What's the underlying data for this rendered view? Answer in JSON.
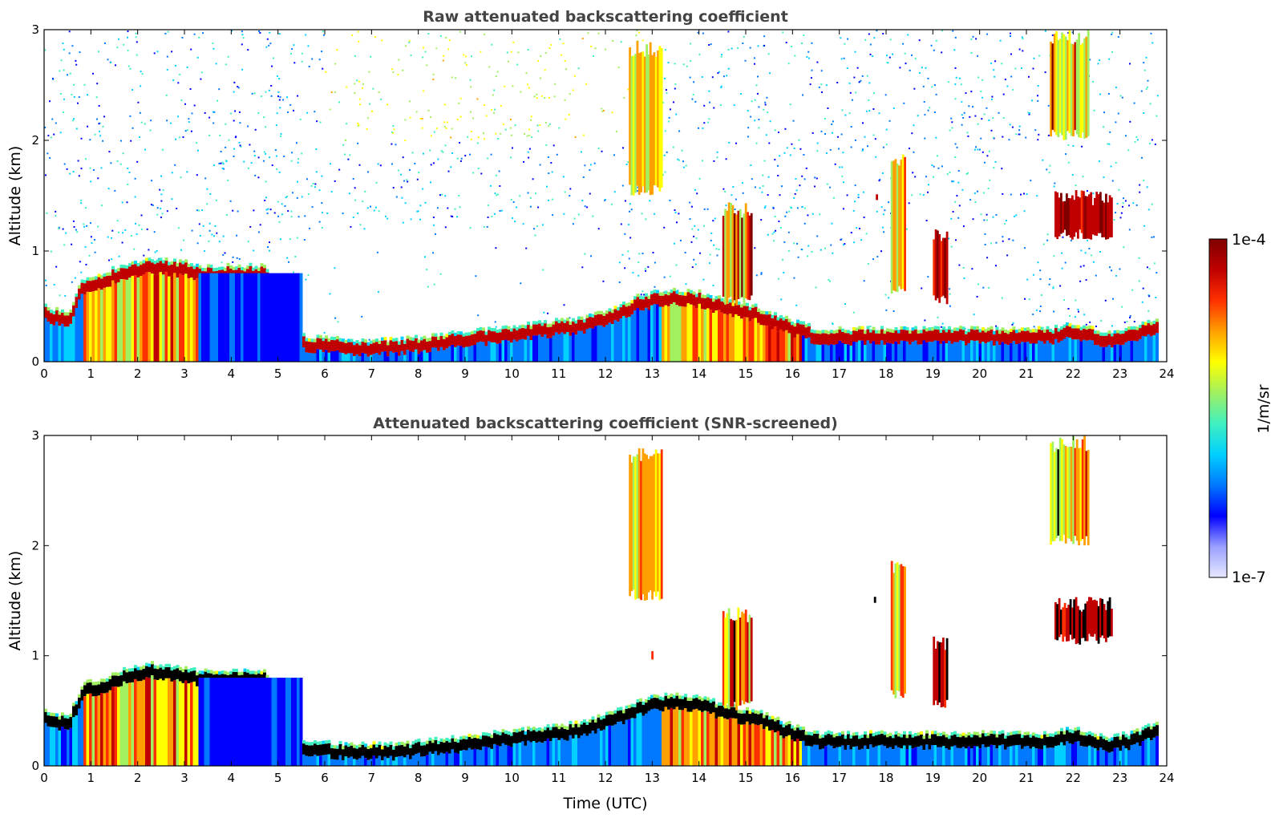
{
  "chart_data": [
    {
      "type": "heatmap",
      "title": "Raw attenuated backscattering coefficient",
      "xlabel": "",
      "ylabel": "Altitude (km)",
      "xlim": [
        0,
        24
      ],
      "ylim": [
        0,
        3
      ],
      "xticks": [
        "0",
        "1",
        "2",
        "3",
        "4",
        "5",
        "6",
        "7",
        "8",
        "9",
        "10",
        "11",
        "12",
        "13",
        "14",
        "15",
        "16",
        "17",
        "18",
        "19",
        "20",
        "21",
        "22",
        "23",
        "24"
      ],
      "yticks": [
        "0",
        "1",
        "2",
        "3"
      ],
      "screened": false,
      "boundary_layer_top_km": {
        "time_utc": [
          0,
          0.5,
          0.8,
          1.2,
          1.8,
          2.3,
          3.0,
          3.3,
          4.7,
          5.4,
          5.6,
          6.5,
          7.5,
          8.5,
          9.5,
          10.5,
          11.5,
          12.2,
          12.7,
          13.3,
          14.0,
          14.6,
          15.2,
          15.8,
          16.5,
          17.5,
          18.5,
          19.2,
          19.8,
          20.5,
          21.5,
          22.0,
          22.7,
          23.2,
          23.8
        ],
        "altitude_km": [
          0.45,
          0.4,
          0.7,
          0.75,
          0.85,
          0.88,
          0.85,
          0.82,
          0.82,
          0.2,
          0.18,
          0.15,
          0.15,
          0.2,
          0.25,
          0.3,
          0.35,
          0.45,
          0.55,
          0.6,
          0.58,
          0.5,
          0.45,
          0.35,
          0.25,
          0.25,
          0.25,
          0.25,
          0.25,
          0.25,
          0.25,
          0.3,
          0.22,
          0.25,
          0.35
        ]
      },
      "cloud_features": [
        {
          "time_start": 12.5,
          "time_end": 13.2,
          "alt_low_km": 1.5,
          "alt_high_km": 2.9
        },
        {
          "time_start": 12.9,
          "time_end": 13.0,
          "alt_low_km": 0.95,
          "alt_high_km": 1.05
        },
        {
          "time_start": 14.5,
          "time_end": 15.1,
          "alt_low_km": 0.5,
          "alt_high_km": 1.45
        },
        {
          "time_start": 17.7,
          "time_end": 17.8,
          "alt_low_km": 1.45,
          "alt_high_km": 1.55
        },
        {
          "time_start": 18.1,
          "time_end": 18.4,
          "alt_low_km": 0.6,
          "alt_high_km": 1.9
        },
        {
          "time_start": 19.0,
          "time_end": 19.3,
          "alt_low_km": 0.5,
          "alt_high_km": 1.2
        },
        {
          "time_start": 21.6,
          "time_end": 22.8,
          "alt_low_km": 1.1,
          "alt_high_km": 1.55
        },
        {
          "time_start": 21.5,
          "time_end": 22.3,
          "alt_low_km": 2.0,
          "alt_high_km": 3.0
        }
      ]
    },
    {
      "type": "heatmap",
      "title": "Attenuated backscattering coefficient (SNR-screened)",
      "xlabel": "Time (UTC)",
      "ylabel": "Altitude (km)",
      "xlim": [
        0,
        24
      ],
      "ylim": [
        0,
        3
      ],
      "xticks": [
        "0",
        "1",
        "2",
        "3",
        "4",
        "5",
        "6",
        "7",
        "8",
        "9",
        "10",
        "11",
        "12",
        "13",
        "14",
        "15",
        "16",
        "17",
        "18",
        "19",
        "20",
        "21",
        "22",
        "23",
        "24"
      ],
      "yticks": [
        "0",
        "1",
        "2",
        "3"
      ],
      "screened": true
    }
  ],
  "colorbar": {
    "label": "1/m/sr",
    "max_label": "1e-4",
    "min_label": "1e-7",
    "range": [
      1e-07,
      0.0001
    ],
    "scale": "log",
    "colors": [
      "#e8e8ff",
      "#9aa0ff",
      "#0000ff",
      "#0078ff",
      "#00d0ff",
      "#40f0c0",
      "#a0f060",
      "#ffff00",
      "#ffa000",
      "#ff3000",
      "#c00000",
      "#800000"
    ]
  }
}
